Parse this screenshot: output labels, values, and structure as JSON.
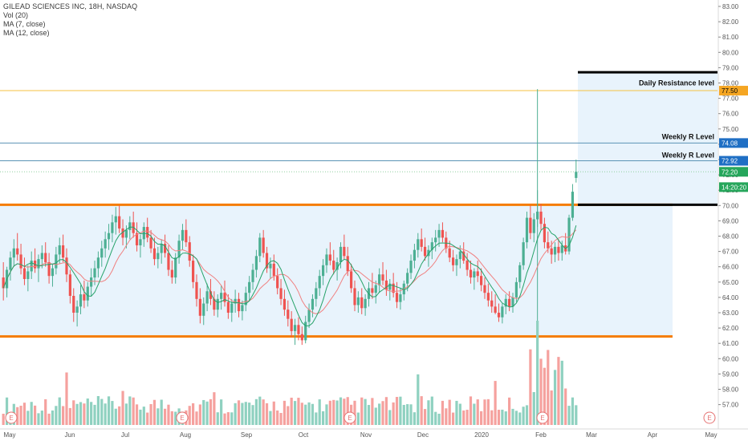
{
  "legend": {
    "title": "GILEAD SCIENCES INC, 18H, NASDAQ",
    "lines": [
      "Vol (20)",
      "MA (7, close)",
      "MA (12, close)"
    ]
  },
  "colors": {
    "up": "#4caf93",
    "down": "#ef5350",
    "vol_up": "#8fd1c0",
    "vol_down": "#f5a19e",
    "ma7": "#26a269",
    "ma12": "#f08080",
    "orange": "#f57c00",
    "yellow_line": "#f5c242",
    "blue_line": "#5b93b5",
    "range_fill": "#e8f3fc",
    "black_line": "#000000"
  },
  "chart_data": {
    "type": "line",
    "y_axis": {
      "labels": [
        "83.00",
        "82.00",
        "81.00",
        "80.00",
        "79.00",
        "78.00",
        "77.00",
        "76.00",
        "75.00",
        "74.00",
        "73.00",
        "72.00",
        "71.00",
        "70.00",
        "69.00",
        "68.00",
        "67.00",
        "66.00",
        "65.00",
        "64.00",
        "63.00",
        "62.00",
        "61.00",
        "60.00",
        "59.00",
        "58.00",
        "57.00"
      ],
      "range": [
        56.5,
        83.3
      ]
    },
    "x_axis": {
      "labels": [
        "May",
        "Jun",
        "Jul",
        "Aug",
        "Sep",
        "Oct",
        "Nov",
        "Dec",
        "2020",
        "Feb",
        "Mar",
        "Apr",
        "May"
      ]
    },
    "price_markers": [
      {
        "label": "77.50",
        "value": 77.5,
        "color": "#f5a623",
        "text_color": "#000000"
      },
      {
        "label": "74.08",
        "value": 74.08,
        "color": "#1f6fc4",
        "text_color": "#ffffff"
      },
      {
        "label": "72.92",
        "value": 72.92,
        "color": "#1f6fc4",
        "text_color": "#ffffff"
      },
      {
        "label": "72.20",
        "value": 72.2,
        "color": "#26a65b",
        "text_color": "#ffffff"
      },
      {
        "label": "14:20:20",
        "value": 71.2,
        "color": "#26a65b",
        "text_color": "#ffffff"
      }
    ],
    "horizontal_levels": [
      {
        "value": 77.5,
        "kind": "yellow"
      },
      {
        "value": 74.08,
        "kind": "blue"
      },
      {
        "value": 72.92,
        "kind": "blue"
      },
      {
        "value": 72.2,
        "kind": "dotted-green"
      },
      {
        "value": 70.05,
        "kind": "orange"
      },
      {
        "value": 61.45,
        "kind": "orange"
      }
    ],
    "annotations": [
      {
        "text": "Daily Resistance level",
        "value": 78.0
      },
      {
        "text": "Weekly R Level",
        "value": 74.5
      },
      {
        "text": "Weekly R Level",
        "value": 73.3
      }
    ],
    "range_box": {
      "from_date": "May",
      "to_date": "Mar",
      "top": 70.05,
      "bottom": 61.45
    },
    "target_box": {
      "top": 78.7,
      "bottom": 70.05
    },
    "earnings_markers": [
      "E",
      "E",
      "E",
      "E",
      "E",
      "E"
    ],
    "series": [
      {
        "name": "MA (7, close)"
      },
      {
        "name": "MA (12, close)"
      }
    ],
    "ohlc": [
      [
        65.3,
        66.3,
        63.8,
        64.6
      ],
      [
        64.6,
        66.0,
        64.0,
        65.8
      ],
      [
        65.8,
        67.0,
        65.1,
        66.6
      ],
      [
        66.6,
        67.8,
        66.0,
        67.2
      ],
      [
        67.2,
        68.2,
        66.4,
        66.8
      ],
      [
        66.8,
        67.5,
        65.5,
        65.9
      ],
      [
        65.9,
        66.6,
        64.8,
        65.2
      ],
      [
        65.2,
        66.1,
        64.4,
        65.7
      ],
      [
        65.7,
        67.0,
        65.2,
        66.4
      ],
      [
        66.4,
        67.2,
        65.6,
        65.9
      ],
      [
        65.9,
        66.8,
        65.0,
        66.5
      ],
      [
        66.5,
        67.4,
        65.9,
        66.9
      ],
      [
        66.9,
        67.6,
        66.0,
        66.3
      ],
      [
        66.3,
        66.9,
        64.9,
        65.4
      ],
      [
        65.4,
        66.2,
        64.7,
        65.9
      ],
      [
        65.9,
        67.3,
        65.5,
        66.8
      ],
      [
        66.8,
        67.9,
        66.2,
        67.4
      ],
      [
        67.4,
        68.1,
        66.3,
        66.6
      ],
      [
        66.6,
        67.2,
        65.0,
        65.5
      ],
      [
        65.5,
        65.8,
        63.6,
        64.1
      ],
      [
        64.1,
        64.6,
        62.4,
        63.0
      ],
      [
        63.0,
        63.8,
        62.1,
        63.4
      ],
      [
        63.4,
        64.8,
        62.9,
        64.2
      ],
      [
        64.2,
        65.1,
        63.3,
        63.8
      ],
      [
        63.8,
        65.0,
        63.4,
        64.7
      ],
      [
        64.7,
        65.9,
        64.1,
        65.3
      ],
      [
        65.3,
        66.4,
        64.8,
        65.9
      ],
      [
        65.9,
        67.0,
        65.3,
        66.6
      ],
      [
        66.6,
        67.7,
        66.0,
        67.2
      ],
      [
        67.2,
        68.3,
        66.6,
        67.8
      ],
      [
        67.8,
        68.8,
        67.1,
        68.2
      ],
      [
        68.2,
        69.4,
        67.6,
        68.9
      ],
      [
        68.9,
        69.9,
        68.1,
        69.3
      ],
      [
        69.3,
        70.0,
        68.2,
        68.5
      ],
      [
        68.5,
        69.1,
        67.4,
        67.9
      ],
      [
        67.9,
        68.7,
        67.2,
        68.4
      ],
      [
        68.4,
        69.3,
        67.8,
        68.9
      ],
      [
        68.9,
        69.6,
        67.9,
        68.2
      ],
      [
        68.2,
        68.9,
        67.0,
        67.4
      ],
      [
        67.4,
        68.1,
        66.6,
        67.8
      ],
      [
        67.8,
        68.9,
        67.3,
        68.6
      ],
      [
        68.6,
        69.2,
        67.6,
        67.9
      ],
      [
        67.9,
        68.4,
        66.9,
        67.2
      ],
      [
        67.2,
        67.9,
        66.1,
        66.5
      ],
      [
        66.5,
        67.3,
        65.9,
        66.9
      ],
      [
        66.9,
        67.8,
        66.2,
        67.5
      ],
      [
        67.5,
        68.1,
        66.6,
        66.9
      ],
      [
        66.9,
        67.4,
        65.4,
        65.8
      ],
      [
        65.8,
        66.4,
        64.9,
        65.3
      ],
      [
        65.3,
        66.9,
        64.9,
        66.6
      ],
      [
        66.6,
        68.1,
        66.2,
        67.7
      ],
      [
        67.7,
        68.8,
        67.1,
        68.4
      ],
      [
        68.4,
        69.1,
        67.3,
        67.6
      ],
      [
        67.6,
        68.0,
        66.0,
        66.4
      ],
      [
        66.4,
        66.8,
        64.6,
        65.0
      ],
      [
        65.0,
        65.5,
        63.4,
        63.9
      ],
      [
        63.9,
        64.6,
        62.3,
        62.8
      ],
      [
        62.8,
        64.0,
        62.2,
        63.6
      ],
      [
        63.6,
        64.9,
        63.1,
        64.4
      ],
      [
        64.4,
        65.2,
        63.5,
        63.9
      ],
      [
        63.9,
        64.4,
        62.8,
        63.2
      ],
      [
        63.2,
        64.2,
        62.7,
        63.9
      ],
      [
        63.9,
        64.8,
        63.2,
        64.3
      ],
      [
        64.3,
        65.1,
        63.4,
        63.7
      ],
      [
        63.7,
        64.2,
        62.6,
        63.0
      ],
      [
        63.0,
        63.9,
        62.4,
        63.6
      ],
      [
        63.6,
        64.5,
        63.0,
        63.9
      ],
      [
        63.9,
        64.3,
        62.7,
        63.1
      ],
      [
        63.1,
        63.8,
        62.5,
        63.5
      ],
      [
        63.5,
        64.7,
        63.1,
        64.3
      ],
      [
        64.3,
        65.4,
        63.8,
        65.0
      ],
      [
        65.0,
        66.2,
        64.5,
        65.8
      ],
      [
        65.8,
        67.1,
        65.3,
        66.7
      ],
      [
        66.7,
        68.2,
        66.3,
        67.9
      ],
      [
        67.9,
        68.4,
        66.6,
        66.9
      ],
      [
        66.9,
        67.3,
        65.6,
        65.9
      ],
      [
        65.9,
        66.6,
        65.2,
        66.2
      ],
      [
        66.2,
        66.8,
        65.1,
        65.4
      ],
      [
        65.4,
        65.9,
        64.2,
        64.6
      ],
      [
        64.6,
        65.2,
        63.5,
        63.9
      ],
      [
        63.9,
        64.5,
        62.8,
        63.2
      ],
      [
        63.2,
        63.8,
        62.1,
        62.6
      ],
      [
        62.6,
        63.1,
        61.4,
        61.8
      ],
      [
        61.8,
        62.6,
        60.9,
        62.2
      ],
      [
        62.2,
        62.7,
        61.2,
        61.6
      ],
      [
        61.6,
        62.1,
        60.9,
        61.2
      ],
      [
        61.2,
        62.8,
        61.0,
        62.4
      ],
      [
        62.4,
        63.6,
        62.0,
        63.2
      ],
      [
        63.2,
        64.2,
        62.7,
        63.9
      ],
      [
        63.9,
        65.0,
        63.4,
        64.6
      ],
      [
        64.6,
        65.8,
        64.1,
        65.4
      ],
      [
        65.4,
        66.5,
        64.8,
        66.1
      ],
      [
        66.1,
        67.2,
        65.6,
        66.8
      ],
      [
        66.8,
        67.6,
        66.1,
        66.4
      ],
      [
        66.4,
        67.1,
        65.5,
        65.8
      ],
      [
        65.8,
        66.6,
        65.1,
        66.3
      ],
      [
        66.3,
        67.6,
        65.9,
        67.3
      ],
      [
        67.3,
        68.1,
        66.5,
        66.7
      ],
      [
        66.7,
        67.3,
        65.4,
        65.7
      ],
      [
        65.7,
        66.2,
        64.3,
        64.6
      ],
      [
        64.6,
        65.1,
        63.1,
        63.5
      ],
      [
        63.5,
        64.4,
        63.0,
        64.0
      ],
      [
        64.0,
        64.6,
        62.9,
        63.3
      ],
      [
        63.3,
        64.2,
        62.8,
        63.9
      ],
      [
        63.9,
        65.0,
        63.4,
        64.6
      ],
      [
        64.6,
        65.6,
        63.9,
        64.3
      ],
      [
        64.3,
        65.1,
        63.6,
        64.8
      ],
      [
        64.8,
        65.9,
        64.3,
        65.5
      ],
      [
        65.5,
        66.3,
        64.8,
        65.1
      ],
      [
        65.1,
        65.8,
        64.1,
        64.5
      ],
      [
        64.5,
        65.2,
        63.8,
        64.9
      ],
      [
        64.9,
        65.6,
        64.0,
        64.3
      ],
      [
        64.3,
        65.0,
        63.3,
        63.7
      ],
      [
        63.7,
        64.6,
        63.2,
        64.2
      ],
      [
        64.2,
        65.1,
        63.8,
        64.9
      ],
      [
        64.9,
        65.9,
        64.4,
        65.6
      ],
      [
        65.6,
        66.8,
        65.2,
        66.4
      ],
      [
        66.4,
        67.5,
        65.9,
        67.1
      ],
      [
        67.1,
        68.2,
        66.6,
        67.8
      ],
      [
        67.8,
        68.5,
        67.0,
        67.3
      ],
      [
        67.3,
        67.9,
        66.4,
        66.7
      ],
      [
        66.7,
        67.4,
        66.0,
        67.1
      ],
      [
        67.1,
        67.9,
        66.5,
        67.6
      ],
      [
        67.6,
        68.4,
        67.0,
        67.9
      ],
      [
        67.9,
        68.8,
        67.3,
        68.4
      ],
      [
        68.4,
        68.9,
        67.6,
        67.9
      ],
      [
        67.9,
        68.3,
        66.9,
        67.2
      ],
      [
        67.2,
        67.7,
        66.3,
        66.6
      ],
      [
        66.6,
        67.1,
        65.7,
        66.1
      ],
      [
        66.1,
        66.8,
        65.4,
        66.5
      ],
      [
        66.5,
        67.4,
        65.9,
        67.0
      ],
      [
        67.0,
        67.6,
        66.2,
        66.4
      ],
      [
        66.4,
        66.9,
        65.4,
        65.8
      ],
      [
        65.8,
        66.4,
        64.9,
        65.3
      ],
      [
        65.3,
        65.9,
        64.5,
        65.7
      ],
      [
        65.7,
        66.4,
        65.0,
        65.4
      ],
      [
        65.4,
        65.9,
        64.4,
        64.8
      ],
      [
        64.8,
        65.3,
        63.9,
        64.3
      ],
      [
        64.3,
        64.9,
        63.4,
        63.8
      ],
      [
        63.8,
        64.4,
        63.0,
        63.4
      ],
      [
        63.4,
        64.2,
        62.9,
        63.0
      ],
      [
        63.0,
        63.6,
        62.4,
        62.7
      ],
      [
        62.7,
        63.6,
        62.3,
        63.4
      ],
      [
        63.4,
        64.2,
        62.9,
        63.9
      ],
      [
        63.9,
        64.4,
        63.1,
        63.4
      ],
      [
        63.4,
        64.3,
        63.0,
        64.0
      ],
      [
        64.0,
        65.3,
        63.7,
        65.0
      ],
      [
        65.0,
        66.3,
        64.6,
        66.1
      ],
      [
        66.1,
        67.9,
        65.8,
        67.6
      ],
      [
        67.6,
        69.6,
        67.2,
        69.2
      ],
      [
        69.2,
        70.0,
        67.8,
        68.2
      ],
      [
        68.2,
        69.5,
        67.6,
        69.1
      ],
      [
        69.1,
        71.0,
        68.6,
        69.6
      ],
      [
        69.6,
        70.1,
        68.4,
        68.8
      ],
      [
        68.8,
        69.2,
        67.2,
        67.6
      ],
      [
        67.6,
        68.3,
        66.9,
        67.2
      ],
      [
        67.2,
        67.7,
        66.2,
        66.8
      ],
      [
        66.8,
        67.6,
        66.3,
        67.3
      ],
      [
        67.3,
        67.8,
        66.4,
        66.9
      ],
      [
        66.9,
        67.7,
        66.4,
        67.4
      ],
      [
        67.4,
        68.2,
        66.8,
        67.0
      ],
      [
        67.0,
        69.4,
        66.8,
        69.2
      ],
      [
        69.2,
        71.4,
        69.0,
        70.9
      ],
      [
        71.8,
        73.0,
        71.5,
        72.2
      ]
    ]
  }
}
